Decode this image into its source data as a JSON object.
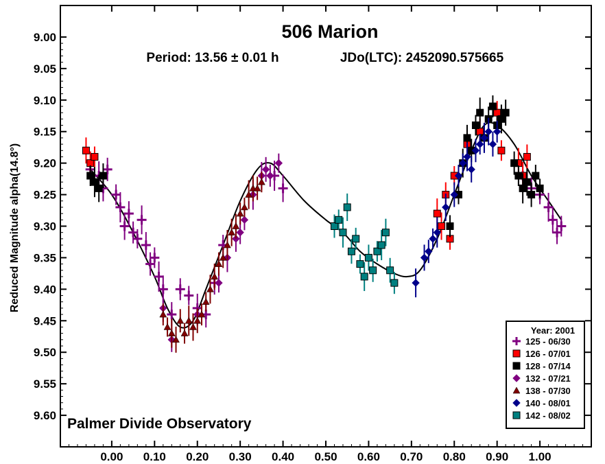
{
  "chart_data": {
    "type": "scatter",
    "title": "506 Marion",
    "subtitle_period": "Period: 13.56 ± 0.01 h",
    "subtitle_epoch": "JDo(LTC): 2452090.575665",
    "ylabel": "Reduced Magnitude alpha(14.8°)",
    "xlabel": "",
    "observatory": "Palmer Divide Observatory",
    "xlim": [
      -0.12,
      1.12
    ],
    "ylim": [
      9.65,
      8.95
    ],
    "y_inverted": true,
    "x_ticks": [
      "0.00",
      "0.10",
      "0.20",
      "0.30",
      "0.40",
      "0.50",
      "0.60",
      "0.70",
      "0.80",
      "0.90",
      "1.00"
    ],
    "y_ticks": [
      "9.00",
      "9.05",
      "9.10",
      "9.15",
      "9.20",
      "9.25",
      "9.30",
      "9.35",
      "9.40",
      "9.45",
      "9.50",
      "9.55",
      "9.60"
    ],
    "grid": false,
    "legend_placement": "bottom-right",
    "legend_title": "Year: 2001",
    "fit_curve": {
      "x": [
        -0.05,
        0.0,
        0.05,
        0.1,
        0.13,
        0.16,
        0.19,
        0.22,
        0.26,
        0.3,
        0.34,
        0.37,
        0.4,
        0.45,
        0.5,
        0.54,
        0.58,
        0.62,
        0.66,
        0.69,
        0.72,
        0.76,
        0.8,
        0.84,
        0.87,
        0.9,
        0.94,
        0.98,
        1.02,
        1.05
      ],
      "y": [
        9.21,
        9.25,
        9.31,
        9.38,
        9.43,
        9.46,
        9.45,
        9.4,
        9.33,
        9.26,
        9.21,
        9.2,
        9.22,
        9.26,
        9.29,
        9.31,
        9.34,
        9.36,
        9.375,
        9.38,
        9.37,
        9.32,
        9.25,
        9.18,
        9.14,
        9.14,
        9.17,
        9.22,
        9.26,
        9.29
      ]
    },
    "series": [
      {
        "name": "125 - 06/30",
        "marker": "plus",
        "color": "#800080",
        "x": [
          -0.05,
          -0.03,
          -0.02,
          -0.01,
          0.01,
          0.02,
          0.03,
          0.04,
          0.05,
          0.06,
          0.07,
          0.08,
          0.09,
          0.1,
          0.11,
          0.12,
          0.14,
          0.16,
          0.18,
          0.2,
          0.22,
          0.24,
          0.26,
          0.38,
          0.4,
          0.96,
          0.98,
          1.0,
          1.02,
          1.03,
          1.04,
          1.05
        ],
        "y": [
          9.21,
          9.22,
          9.24,
          9.21,
          9.25,
          9.27,
          9.3,
          9.28,
          9.31,
          9.32,
          9.29,
          9.33,
          9.36,
          9.35,
          9.38,
          9.4,
          9.44,
          9.4,
          9.41,
          9.43,
          9.44,
          9.39,
          9.33,
          9.22,
          9.24,
          9.22,
          9.24,
          9.25,
          9.27,
          9.29,
          9.31,
          9.3
        ]
      },
      {
        "name": "126 - 07/01",
        "marker": "square",
        "color": "#ff0000",
        "x": [
          -0.06,
          -0.05,
          -0.04,
          0.76,
          0.77,
          0.78,
          0.79,
          0.8,
          0.83,
          0.86,
          0.9,
          0.91,
          0.95,
          0.96,
          0.97
        ],
        "y": [
          9.18,
          9.2,
          9.19,
          9.28,
          9.3,
          9.25,
          9.32,
          9.22,
          9.17,
          9.15,
          9.12,
          9.18,
          9.2,
          9.22,
          9.19
        ]
      },
      {
        "name": "128 - 07/14",
        "marker": "square",
        "color": "#000000",
        "x": [
          -0.05,
          -0.04,
          -0.03,
          -0.02,
          0.79,
          0.81,
          0.82,
          0.83,
          0.84,
          0.85,
          0.86,
          0.87,
          0.88,
          0.89,
          0.9,
          0.91,
          0.92,
          0.94,
          0.95,
          0.96,
          0.97,
          0.98,
          0.99,
          1.0
        ],
        "y": [
          9.22,
          9.23,
          9.24,
          9.22,
          9.3,
          9.25,
          9.2,
          9.16,
          9.18,
          9.14,
          9.12,
          9.16,
          9.13,
          9.11,
          9.14,
          9.13,
          9.12,
          9.2,
          9.22,
          9.24,
          9.23,
          9.25,
          9.22,
          9.24
        ]
      },
      {
        "name": "132 - 07/21",
        "marker": "diamond",
        "color": "#800080",
        "x": [
          0.12,
          0.14,
          0.2,
          0.25,
          0.27,
          0.29,
          0.3,
          0.31,
          0.33,
          0.35,
          0.36,
          0.37,
          0.39
        ],
        "y": [
          9.43,
          9.48,
          9.44,
          9.39,
          9.35,
          9.32,
          9.31,
          9.29,
          9.25,
          9.22,
          9.21,
          9.22,
          9.2
        ]
      },
      {
        "name": "138 - 07/30",
        "marker": "triangle",
        "color": "#800000",
        "x": [
          0.12,
          0.13,
          0.14,
          0.15,
          0.16,
          0.17,
          0.18,
          0.19,
          0.2,
          0.21,
          0.22,
          0.23,
          0.24,
          0.25,
          0.26,
          0.27,
          0.28,
          0.29,
          0.3,
          0.31,
          0.32,
          0.33,
          0.34,
          0.35
        ],
        "y": [
          9.44,
          9.46,
          9.47,
          9.48,
          9.45,
          9.47,
          9.45,
          9.46,
          9.45,
          9.44,
          9.42,
          9.4,
          9.38,
          9.36,
          9.35,
          9.33,
          9.31,
          9.3,
          9.28,
          9.27,
          9.25,
          9.24,
          9.24,
          9.23
        ]
      },
      {
        "name": "140 - 08/01",
        "marker": "diamond",
        "color": "#00008b",
        "x": [
          0.71,
          0.73,
          0.74,
          0.75,
          0.76,
          0.78,
          0.8,
          0.81,
          0.82,
          0.83,
          0.84,
          0.85,
          0.86,
          0.87,
          0.88,
          0.89,
          0.9
        ],
        "y": [
          9.39,
          9.35,
          9.34,
          9.32,
          9.31,
          9.27,
          9.25,
          9.22,
          9.2,
          9.19,
          9.21,
          9.18,
          9.17,
          9.16,
          9.15,
          9.17,
          9.15
        ]
      },
      {
        "name": "142 - 08/02",
        "marker": "square",
        "color": "#008080",
        "x": [
          0.52,
          0.53,
          0.54,
          0.55,
          0.56,
          0.57,
          0.58,
          0.59,
          0.6,
          0.61,
          0.62,
          0.63,
          0.64,
          0.65,
          0.66
        ],
        "y": [
          9.3,
          9.29,
          9.31,
          9.27,
          9.34,
          9.32,
          9.36,
          9.38,
          9.35,
          9.37,
          9.34,
          9.33,
          9.31,
          9.37,
          9.39
        ]
      }
    ]
  }
}
